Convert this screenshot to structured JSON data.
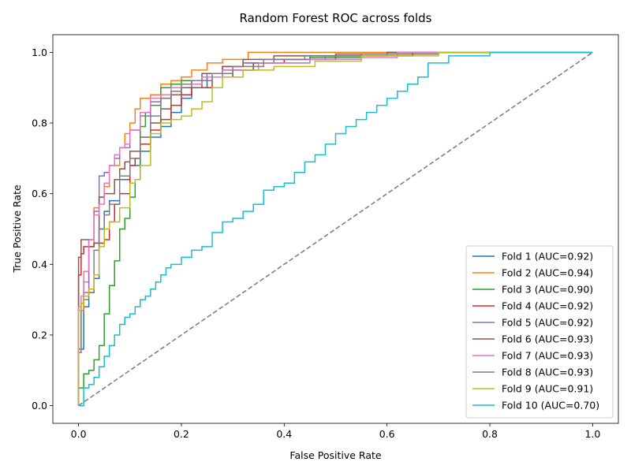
{
  "chart_data": {
    "type": "line",
    "title": "Random Forest ROC across folds",
    "xlabel": "False Positive Rate",
    "ylabel": "True Positive Rate",
    "xlim": [
      -0.05,
      1.05
    ],
    "ylim": [
      -0.05,
      1.05
    ],
    "xticks": [
      "0.0",
      "0.2",
      "0.4",
      "0.6",
      "0.8",
      "1.0"
    ],
    "yticks": [
      "0.0",
      "0.2",
      "0.4",
      "0.6",
      "0.8",
      "1.0"
    ],
    "legend_position": "lower-right",
    "grid": false,
    "diagonal": {
      "x": [
        0,
        1
      ],
      "y": [
        0,
        1
      ],
      "color": "#808080",
      "style": "dashed"
    },
    "series": [
      {
        "name": "Fold 1 (AUC=0.92)",
        "color": "#1f77b4",
        "x": [
          0,
          0,
          0.01,
          0.02,
          0.03,
          0.04,
          0.05,
          0.06,
          0.08,
          0.1,
          0.12,
          0.14,
          0.16,
          0.18,
          0.2,
          0.22,
          0.25,
          0.28,
          0.32,
          0.38,
          0.45,
          0.55,
          0.7,
          1.0
        ],
        "y": [
          0,
          0.16,
          0.28,
          0.32,
          0.36,
          0.5,
          0.55,
          0.58,
          0.64,
          0.68,
          0.72,
          0.76,
          0.79,
          0.83,
          0.87,
          0.9,
          0.93,
          0.96,
          0.97,
          0.98,
          0.99,
          0.995,
          1.0,
          1.0
        ]
      },
      {
        "name": "Fold 2 (AUC=0.94)",
        "color": "#ff7f0e",
        "x": [
          0,
          0,
          0.01,
          0.02,
          0.03,
          0.04,
          0.05,
          0.06,
          0.08,
          0.09,
          0.1,
          0.11,
          0.12,
          0.14,
          0.16,
          0.18,
          0.2,
          0.22,
          0.25,
          0.28,
          0.33,
          0.4,
          0.6,
          1.0
        ],
        "y": [
          0,
          0.27,
          0.35,
          0.45,
          0.56,
          0.59,
          0.62,
          0.68,
          0.73,
          0.77,
          0.8,
          0.84,
          0.87,
          0.88,
          0.91,
          0.92,
          0.93,
          0.95,
          0.97,
          0.98,
          1.0,
          1.0,
          1.0,
          1.0
        ]
      },
      {
        "name": "Fold 3 (AUC=0.90)",
        "color": "#2ca02c",
        "x": [
          0,
          0,
          0.01,
          0.02,
          0.03,
          0.04,
          0.05,
          0.06,
          0.07,
          0.08,
          0.09,
          0.1,
          0.11,
          0.12,
          0.13,
          0.14,
          0.16,
          0.18,
          0.2,
          0.24,
          0.28,
          0.34,
          0.45,
          0.55,
          0.65,
          1.0
        ],
        "y": [
          0,
          0.05,
          0.09,
          0.1,
          0.13,
          0.17,
          0.26,
          0.34,
          0.41,
          0.5,
          0.53,
          0.59,
          0.64,
          0.79,
          0.83,
          0.85,
          0.9,
          0.91,
          0.92,
          0.93,
          0.95,
          0.97,
          0.985,
          0.995,
          1.0,
          1.0
        ]
      },
      {
        "name": "Fold 4 (AUC=0.92)",
        "color": "#d62728",
        "x": [
          0,
          0,
          0.005,
          0.01,
          0.02,
          0.03,
          0.05,
          0.06,
          0.07,
          0.08,
          0.1,
          0.11,
          0.12,
          0.14,
          0.16,
          0.18,
          0.2,
          0.22,
          0.26,
          0.3,
          0.34,
          0.4,
          0.5,
          0.65,
          1.0
        ],
        "y": [
          0,
          0.37,
          0.43,
          0.45,
          0.45,
          0.46,
          0.47,
          0.52,
          0.57,
          0.6,
          0.68,
          0.7,
          0.74,
          0.78,
          0.81,
          0.85,
          0.88,
          0.9,
          0.93,
          0.95,
          0.97,
          0.98,
          0.99,
          1.0,
          1.0
        ]
      },
      {
        "name": "Fold 5 (AUC=0.92)",
        "color": "#9467bd",
        "x": [
          0,
          0,
          0.005,
          0.01,
          0.02,
          0.03,
          0.04,
          0.05,
          0.06,
          0.07,
          0.08,
          0.1,
          0.12,
          0.14,
          0.16,
          0.18,
          0.2,
          0.22,
          0.25,
          0.28,
          0.32,
          0.38,
          0.48,
          0.6,
          0.8,
          1.0
        ],
        "y": [
          0,
          0.15,
          0.29,
          0.32,
          0.47,
          0.55,
          0.65,
          0.66,
          0.68,
          0.7,
          0.73,
          0.78,
          0.82,
          0.86,
          0.87,
          0.88,
          0.9,
          0.92,
          0.94,
          0.96,
          0.97,
          0.98,
          0.99,
          1.0,
          1.0,
          1.0
        ]
      },
      {
        "name": "Fold 6 (AUC=0.93)",
        "color": "#8c564b",
        "x": [
          0,
          0,
          0.005,
          0.01,
          0.02,
          0.03,
          0.04,
          0.05,
          0.06,
          0.07,
          0.08,
          0.09,
          0.1,
          0.12,
          0.14,
          0.16,
          0.18,
          0.2,
          0.24,
          0.28,
          0.32,
          0.38,
          0.5,
          0.6,
          1.0
        ],
        "y": [
          0,
          0.42,
          0.47,
          0.47,
          0.45,
          0.46,
          0.59,
          0.6,
          0.6,
          0.64,
          0.67,
          0.69,
          0.72,
          0.76,
          0.8,
          0.84,
          0.88,
          0.9,
          0.94,
          0.96,
          0.98,
          0.99,
          0.995,
          1.0,
          1.0
        ]
      },
      {
        "name": "Fold 7 (AUC=0.93)",
        "color": "#e377c2",
        "x": [
          0,
          0,
          0.005,
          0.01,
          0.02,
          0.03,
          0.04,
          0.05,
          0.06,
          0.07,
          0.08,
          0.09,
          0.1,
          0.12,
          0.14,
          0.16,
          0.18,
          0.2,
          0.24,
          0.28,
          0.35,
          0.45,
          0.55,
          0.62,
          0.8,
          1.0
        ],
        "y": [
          0,
          0.28,
          0.31,
          0.38,
          0.47,
          0.54,
          0.57,
          0.63,
          0.68,
          0.71,
          0.73,
          0.74,
          0.78,
          0.83,
          0.87,
          0.88,
          0.9,
          0.91,
          0.93,
          0.95,
          0.97,
          0.98,
          0.985,
          1.0,
          1.0,
          1.0
        ]
      },
      {
        "name": "Fold 8 (AUC=0.93)",
        "color": "#7f7f7f",
        "x": [
          0,
          0,
          0.005,
          0.01,
          0.02,
          0.03,
          0.04,
          0.05,
          0.06,
          0.08,
          0.1,
          0.12,
          0.14,
          0.16,
          0.18,
          0.2,
          0.22,
          0.26,
          0.3,
          0.36,
          0.44,
          0.55,
          0.7,
          1.0
        ],
        "y": [
          0,
          0.16,
          0.29,
          0.3,
          0.32,
          0.44,
          0.5,
          0.54,
          0.57,
          0.65,
          0.7,
          0.76,
          0.82,
          0.87,
          0.89,
          0.91,
          0.92,
          0.94,
          0.96,
          0.98,
          0.99,
          0.995,
          1.0,
          1.0
        ]
      },
      {
        "name": "Fold 9 (AUC=0.91)",
        "color": "#bcbd22",
        "x": [
          0,
          0,
          0.005,
          0.01,
          0.02,
          0.03,
          0.04,
          0.05,
          0.06,
          0.08,
          0.1,
          0.11,
          0.12,
          0.14,
          0.16,
          0.18,
          0.2,
          0.22,
          0.24,
          0.26,
          0.28,
          0.32,
          0.38,
          0.46,
          0.55,
          0.7,
          1.0
        ],
        "y": [
          0,
          0.27,
          0.29,
          0.31,
          0.33,
          0.37,
          0.45,
          0.5,
          0.52,
          0.56,
          0.63,
          0.64,
          0.68,
          0.77,
          0.8,
          0.81,
          0.82,
          0.84,
          0.86,
          0.9,
          0.93,
          0.95,
          0.96,
          0.975,
          0.99,
          1.0,
          1.0
        ]
      },
      {
        "name": "Fold 10 (AUC=0.70)",
        "color": "#17becf",
        "x": [
          0,
          0.01,
          0.02,
          0.03,
          0.04,
          0.05,
          0.06,
          0.07,
          0.08,
          0.09,
          0.1,
          0.11,
          0.12,
          0.13,
          0.14,
          0.15,
          0.16,
          0.17,
          0.18,
          0.19,
          0.2,
          0.22,
          0.24,
          0.26,
          0.28,
          0.3,
          0.32,
          0.34,
          0.36,
          0.38,
          0.4,
          0.42,
          0.44,
          0.46,
          0.48,
          0.5,
          0.52,
          0.54,
          0.56,
          0.58,
          0.6,
          0.62,
          0.64,
          0.66,
          0.68,
          0.72,
          0.76,
          0.8,
          1.0
        ],
        "y": [
          0,
          0.05,
          0.06,
          0.08,
          0.11,
          0.14,
          0.17,
          0.2,
          0.23,
          0.25,
          0.26,
          0.28,
          0.3,
          0.31,
          0.33,
          0.35,
          0.37,
          0.39,
          0.4,
          0.4,
          0.42,
          0.44,
          0.45,
          0.49,
          0.52,
          0.53,
          0.55,
          0.57,
          0.61,
          0.62,
          0.63,
          0.66,
          0.69,
          0.71,
          0.74,
          0.77,
          0.79,
          0.81,
          0.83,
          0.85,
          0.87,
          0.89,
          0.91,
          0.93,
          0.97,
          0.99,
          0.99,
          1.0,
          1.0
        ]
      }
    ]
  }
}
